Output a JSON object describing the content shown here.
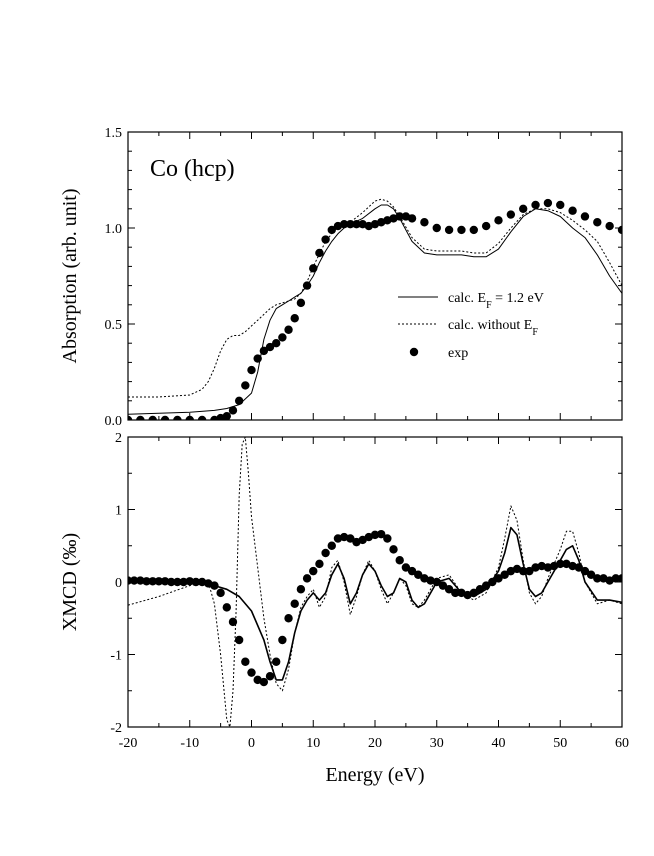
{
  "chart_data": [
    {
      "type": "line",
      "panel": "top",
      "title": "Co (hcp)",
      "xlabel": "",
      "ylabel": "Absorption (arb. unit)",
      "xlim": [
        -20,
        60
      ],
      "ylim": [
        0.0,
        1.5
      ],
      "yticks": [
        "0.0",
        "0.5",
        "1.0",
        "1.5"
      ],
      "legend_position": "right-middle",
      "series": [
        {
          "name": "calc. E_F = 1.2 eV",
          "legend": {
            "main": "calc. E",
            "sub": "F",
            "rest": " = 1.2 eV"
          },
          "style": "solid",
          "x": [
            -20,
            -15,
            -10,
            -6,
            -4,
            -2,
            0,
            1,
            2,
            3,
            4,
            5,
            6,
            7,
            8,
            9,
            10,
            11,
            12,
            13,
            14,
            15,
            16,
            18,
            20,
            21,
            22,
            23,
            24,
            26,
            28,
            30,
            32,
            34,
            36,
            38,
            40,
            42,
            44,
            46,
            48,
            50,
            52,
            54,
            56,
            58,
            60
          ],
          "y": [
            0.03,
            0.035,
            0.04,
            0.05,
            0.06,
            0.08,
            0.14,
            0.25,
            0.42,
            0.52,
            0.58,
            0.6,
            0.62,
            0.64,
            0.66,
            0.7,
            0.75,
            0.82,
            0.88,
            0.93,
            0.97,
            1.0,
            1.02,
            1.05,
            1.1,
            1.12,
            1.12,
            1.1,
            1.05,
            0.93,
            0.87,
            0.86,
            0.86,
            0.86,
            0.85,
            0.85,
            0.89,
            0.98,
            1.06,
            1.1,
            1.09,
            1.06,
            1.0,
            0.95,
            0.86,
            0.75,
            0.66
          ]
        },
        {
          "name": "calc. without E_F",
          "legend": {
            "main": "calc. without E",
            "sub": "F",
            "rest": ""
          },
          "style": "dotted",
          "x": [
            -20,
            -15,
            -10,
            -8,
            -7,
            -6,
            -5,
            -4,
            -3,
            -2,
            -1,
            0,
            1,
            2,
            3,
            4,
            5,
            6,
            7,
            8,
            9,
            10,
            12,
            14,
            16,
            18,
            20,
            21,
            22,
            23,
            24,
            26,
            28,
            30,
            32,
            34,
            36,
            38,
            40,
            42,
            44,
            46,
            48,
            50,
            52,
            54,
            56,
            58,
            60
          ],
          "y": [
            0.12,
            0.12,
            0.13,
            0.16,
            0.2,
            0.27,
            0.36,
            0.42,
            0.44,
            0.44,
            0.46,
            0.49,
            0.52,
            0.55,
            0.58,
            0.6,
            0.61,
            0.62,
            0.63,
            0.66,
            0.72,
            0.8,
            0.93,
            1.01,
            1.03,
            1.08,
            1.14,
            1.15,
            1.14,
            1.11,
            1.06,
            0.95,
            0.89,
            0.88,
            0.88,
            0.88,
            0.87,
            0.87,
            0.92,
            1.0,
            1.07,
            1.1,
            1.1,
            1.08,
            1.04,
            0.99,
            0.93,
            0.82,
            0.7
          ]
        },
        {
          "name": "exp",
          "legend": {
            "main": "exp",
            "sub": "",
            "rest": ""
          },
          "style": "markers",
          "x": [
            -20,
            -18,
            -16,
            -14,
            -12,
            -10,
            -8,
            -6,
            -5,
            -4,
            -3,
            -2,
            -1,
            0,
            1,
            2,
            3,
            4,
            5,
            6,
            7,
            8,
            9,
            10,
            11,
            12,
            13,
            14,
            15,
            16,
            17,
            18,
            19,
            20,
            21,
            22,
            23,
            24,
            25,
            26,
            28,
            30,
            32,
            34,
            36,
            38,
            40,
            42,
            44,
            46,
            48,
            50,
            52,
            54,
            56,
            58,
            60
          ],
          "y": [
            0.0,
            0.0,
            0.0,
            0.0,
            0.0,
            0.0,
            0.0,
            0.0,
            0.01,
            0.02,
            0.05,
            0.1,
            0.18,
            0.26,
            0.32,
            0.36,
            0.38,
            0.4,
            0.43,
            0.47,
            0.53,
            0.61,
            0.7,
            0.79,
            0.87,
            0.94,
            0.99,
            1.01,
            1.02,
            1.02,
            1.02,
            1.02,
            1.01,
            1.02,
            1.03,
            1.04,
            1.05,
            1.06,
            1.06,
            1.05,
            1.03,
            1.0,
            0.99,
            0.99,
            0.99,
            1.01,
            1.04,
            1.07,
            1.1,
            1.12,
            1.13,
            1.12,
            1.09,
            1.06,
            1.03,
            1.01,
            0.99
          ]
        }
      ]
    },
    {
      "type": "line",
      "panel": "bottom",
      "title": "",
      "xlabel": "Energy (eV)",
      "ylabel": "XMCD (‰)",
      "xlim": [
        -20,
        60
      ],
      "ylim": [
        -2,
        2
      ],
      "xticks": [
        "-20",
        "-10",
        "0",
        "10",
        "20",
        "30",
        "40",
        "50",
        "60"
      ],
      "yticks": [
        "-2",
        "-1",
        "0",
        "1",
        "2"
      ],
      "series": [
        {
          "name": "calc. E_F = 1.2 eV",
          "style": "solid",
          "x": [
            -20,
            -10,
            -6,
            -4,
            -2,
            0,
            2,
            3,
            4,
            5,
            6,
            7,
            8,
            9,
            10,
            11,
            12,
            13,
            14,
            15,
            16,
            17,
            18,
            19,
            20,
            21,
            22,
            23,
            24,
            25,
            26,
            27,
            28,
            30,
            32,
            34,
            36,
            38,
            40,
            41,
            42,
            43,
            44,
            45,
            46,
            47,
            48,
            50,
            51,
            52,
            53,
            54,
            56,
            58,
            60
          ],
          "y": [
            0.02,
            0.02,
            -0.05,
            -0.1,
            -0.2,
            -0.4,
            -0.8,
            -1.1,
            -1.35,
            -1.35,
            -1.1,
            -0.7,
            -0.4,
            -0.25,
            -0.15,
            -0.25,
            -0.15,
            0.1,
            0.25,
            0.05,
            -0.3,
            -0.15,
            0.1,
            0.25,
            0.15,
            -0.05,
            -0.2,
            -0.15,
            0.05,
            0.0,
            -0.25,
            -0.35,
            -0.3,
            0.0,
            0.05,
            -0.15,
            -0.2,
            -0.1,
            0.15,
            0.4,
            0.75,
            0.65,
            0.25,
            -0.1,
            -0.2,
            -0.15,
            0.0,
            0.3,
            0.45,
            0.5,
            0.3,
            0.0,
            -0.25,
            -0.25,
            -0.28
          ]
        },
        {
          "name": "calc. without E_F",
          "style": "dotted",
          "x": [
            -20,
            -15,
            -10,
            -7,
            -6,
            -5,
            -4,
            -3.5,
            -3,
            -2.5,
            -2,
            -1.5,
            -1,
            -0.5,
            0,
            1,
            2,
            3,
            4,
            5,
            6,
            7,
            8,
            9,
            10,
            11,
            12,
            13,
            14,
            15,
            16,
            17,
            18,
            19,
            20,
            21,
            22,
            23,
            24,
            25,
            26,
            27,
            28,
            30,
            32,
            34,
            36,
            38,
            40,
            41,
            42,
            43,
            44,
            45,
            46,
            47,
            48,
            50,
            51,
            52,
            53,
            54,
            56,
            58,
            60
          ],
          "y": [
            -0.32,
            -0.2,
            -0.05,
            0.0,
            -0.3,
            -1.0,
            -1.9,
            -2.0,
            -1.5,
            -0.4,
            1.2,
            1.9,
            2.0,
            1.5,
            0.9,
            0.2,
            -0.5,
            -1.0,
            -1.4,
            -1.5,
            -1.2,
            -0.7,
            -0.35,
            -0.2,
            -0.1,
            -0.35,
            -0.2,
            0.2,
            0.3,
            0.0,
            -0.45,
            -0.2,
            0.1,
            0.3,
            0.15,
            -0.1,
            -0.3,
            -0.15,
            0.05,
            -0.05,
            -0.3,
            -0.35,
            -0.25,
            0.05,
            0.1,
            -0.15,
            -0.25,
            -0.15,
            0.2,
            0.6,
            1.05,
            0.85,
            0.3,
            -0.15,
            -0.3,
            -0.2,
            0.05,
            0.45,
            0.7,
            0.7,
            0.4,
            0.0,
            -0.3,
            -0.25,
            -0.3
          ]
        },
        {
          "name": "exp",
          "style": "markers",
          "x": [
            -20,
            -19,
            -18,
            -17,
            -16,
            -15,
            -14,
            -13,
            -12,
            -11,
            -10,
            -9,
            -8,
            -7,
            -6,
            -5,
            -4,
            -3,
            -2,
            -1,
            0,
            1,
            2,
            3,
            4,
            5,
            6,
            7,
            8,
            9,
            10,
            11,
            12,
            13,
            14,
            15,
            16,
            17,
            18,
            19,
            20,
            21,
            22,
            23,
            24,
            25,
            26,
            27,
            28,
            29,
            30,
            31,
            32,
            33,
            34,
            35,
            36,
            37,
            38,
            39,
            40,
            41,
            42,
            43,
            44,
            45,
            46,
            47,
            48,
            49,
            50,
            51,
            52,
            53,
            54,
            55,
            56,
            57,
            58,
            59,
            60
          ],
          "y": [
            0.02,
            0.02,
            0.02,
            0.01,
            0.01,
            0.01,
            0.01,
            0.0,
            0.0,
            0.0,
            0.01,
            0.0,
            0.0,
            -0.02,
            -0.05,
            -0.15,
            -0.35,
            -0.55,
            -0.8,
            -1.1,
            -1.25,
            -1.35,
            -1.38,
            -1.3,
            -1.1,
            -0.8,
            -0.5,
            -0.3,
            -0.1,
            0.05,
            0.15,
            0.25,
            0.4,
            0.5,
            0.6,
            0.62,
            0.6,
            0.55,
            0.58,
            0.62,
            0.65,
            0.66,
            0.6,
            0.45,
            0.3,
            0.2,
            0.15,
            0.1,
            0.05,
            0.02,
            0.0,
            -0.05,
            -0.1,
            -0.15,
            -0.15,
            -0.18,
            -0.15,
            -0.1,
            -0.05,
            0.0,
            0.05,
            0.1,
            0.15,
            0.18,
            0.15,
            0.15,
            0.2,
            0.22,
            0.2,
            0.22,
            0.25,
            0.25,
            0.22,
            0.2,
            0.15,
            0.1,
            0.05,
            0.05,
            0.02,
            0.05,
            0.05
          ]
        }
      ]
    }
  ]
}
